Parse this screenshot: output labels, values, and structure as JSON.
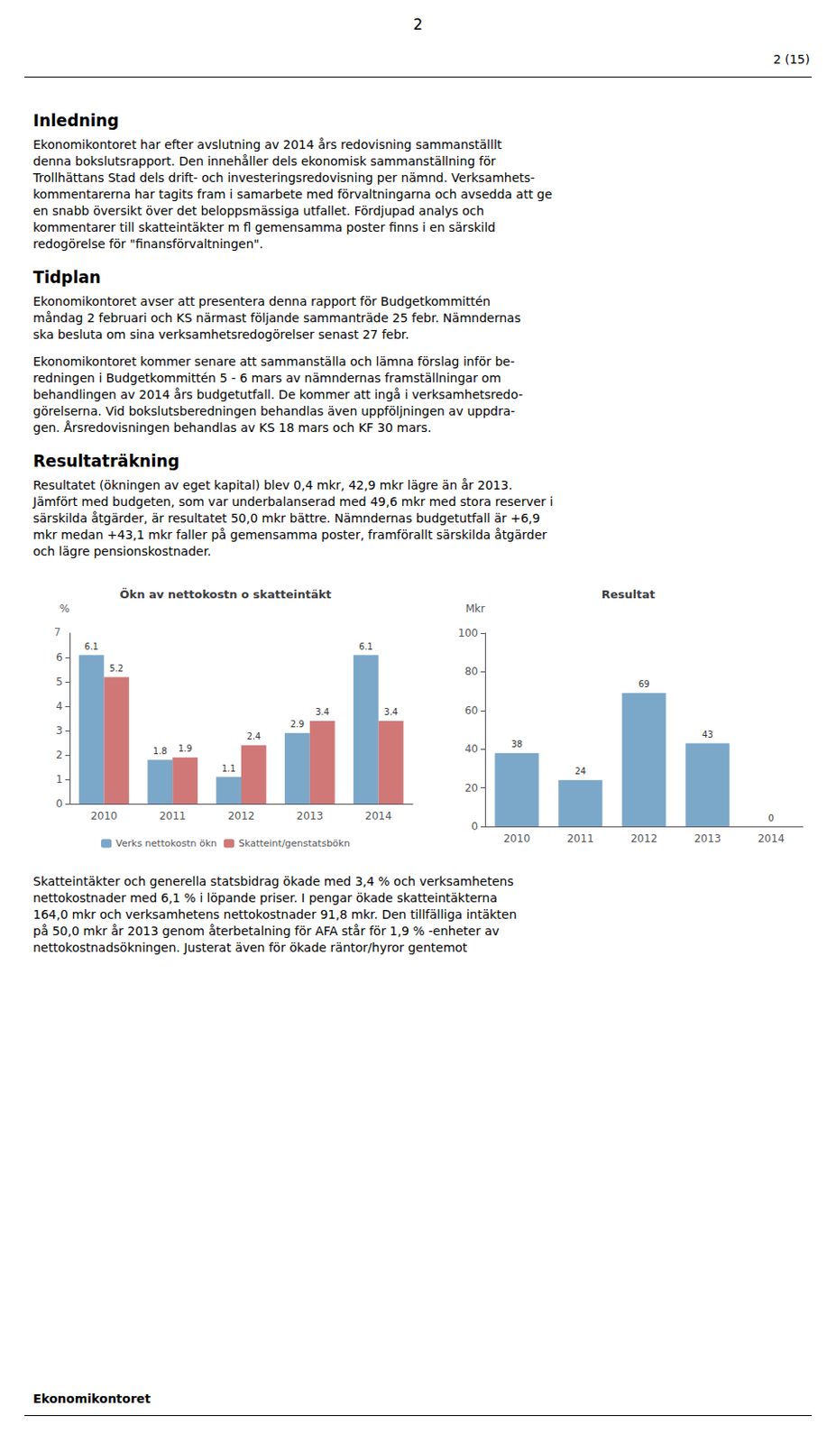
{
  "page": {
    "header": [
      "2",
      "2 (15)"
    ],
    "sections": [
      {
        "title": "Inledning",
        "paragraphs": [
          [
            "Ekonomikontoret har efter avslutning av 2014 års redovisning sammanställlt",
            "denna bokslutsrapport. Den innehåller dels ekonomisk sammanställning för",
            "Trollhättans Stad dels drift- och investeringsredovisning per nämnd. Verksamhets-",
            "kommentarerna har tagits fram i samarbete med förvaltningarna och avsedda att ge",
            "en snabb översikt över det beloppsmässiga utfallet. Fördjupad analys och",
            "kommentarer till skatteintäkter m fl gemensamma poster finns i en särskild",
            "redogörelse för \"finansförvaltningen\"."
          ]
        ]
      },
      {
        "title": "Tidplan",
        "paragraphs": [
          [
            "Ekonomikontoret avser att presentera denna rapport för Budgetkommittén",
            "måndag 2 februari och KS närmast följande sammanträde 25 febr. Nämndernas",
            "ska besluta om sina verksamhetsredogörelser senast 27 febr."
          ],
          [
            "Ekonomikontoret kommer senare att sammanställa och lämna förslag inför be-",
            "redningen i Budgetkommittén 5 - 6 mars av nämndernas framställningar om",
            "behandlingen av 2014 års budgetutfall. De kommer att ingå i verksamhetsredo-",
            "görelserna. Vid bokslutsberedningen behandlas även uppföljningen av uppdra-",
            "gen. Årsredovisningen behandlas av KS 18 mars och KF 30 mars."
          ]
        ]
      },
      {
        "title": "Resultaträkning",
        "paragraphs": [
          [
            "Resultatet (ökningen av eget kapital) blev 0,4 mkr, 42,9 mkr lägre än år 2013.",
            "Jämfört med budgeten, som var underbalanserad med 49,6 mkr med stora reserver i",
            "särskilda åtgärder, är resultatet 50,0 mkr bättre. Nämndernas budgetutfall är +6,9",
            "mkr medan +43,1 mkr faller på gemensamma poster, framförallt särskilda åtgärder",
            "och lägre pensionskostnader."
          ]
        ]
      }
    ],
    "after_charts": [
      [
        "Skatteintäkter och generella statsbidrag ökade med 3,4 % och verksamhetens",
        "nettokostnader med 6,1 % i löpande priser. I pengar ökade skatteintäkterna",
        "164,0 mkr och verksamhetens nettokostnader 91,8 mkr. Den tillfälliga intäkten",
        "på 50,0 mkr år 2013 genom återbetalning för AFA står för 1,9 % -enheter av",
        "nettokostnadsökningen. Justerat även för ökade räntor/hyror gentemot"
      ]
    ],
    "footer": "Ekonomikontoret"
  },
  "chart_data": [
    {
      "type": "bar",
      "title": "Ökn av nettokostn o skatteintäkt",
      "ylabel": "%",
      "annotations": [
        "7"
      ],
      "categories": [
        "2010",
        "2011",
        "2012",
        "2013",
        "2014"
      ],
      "series": [
        {
          "name": "Verks nettokostn ökn",
          "color": "#7ba7c9",
          "values": [
            6.1,
            1.8,
            1.1,
            2.9,
            6.1
          ]
        },
        {
          "name": "Skatteint/genstatsbökn",
          "color": "#d07878",
          "values": [
            5.2,
            1.9,
            2.4,
            3.4,
            3.4
          ]
        }
      ],
      "ylim": [
        0,
        7
      ],
      "yticks": [
        0,
        1,
        2,
        3,
        4,
        5,
        6
      ],
      "grid": false,
      "legend": "bottom",
      "data_labels": true
    },
    {
      "type": "bar",
      "title": "Resultat",
      "ylabel": "Mkr",
      "categories": [
        "2010",
        "2011",
        "2012",
        "2013",
        "2014"
      ],
      "values": [
        38,
        24,
        69,
        43,
        0
      ],
      "color": "#7ba7c9",
      "ylim": [
        0,
        100
      ],
      "yticks": [
        0,
        20,
        40,
        60,
        80,
        100
      ],
      "grid": false,
      "data_labels": true
    }
  ]
}
